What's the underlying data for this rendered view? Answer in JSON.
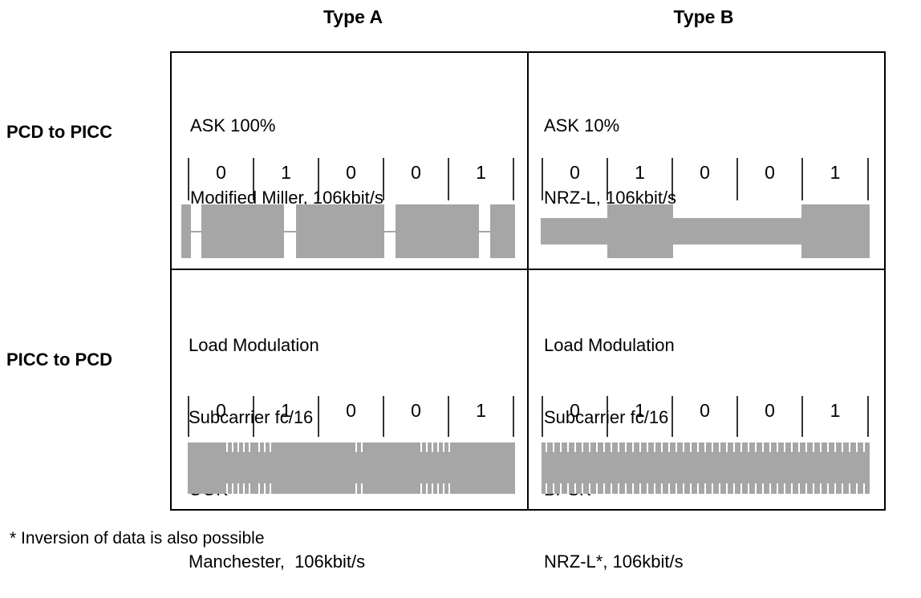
{
  "columns": [
    "Type A",
    "Type B"
  ],
  "rows": [
    "PCD to PICC",
    "PICC to PCD"
  ],
  "cells": {
    "a_down": [
      "ASK 100%",
      "Modified Miller, 106kbit/s"
    ],
    "b_down": [
      "ASK 10%",
      "NRZ-L, 106kbit/s"
    ],
    "a_up": [
      "Load Modulation",
      "Subcarrier fc/16",
      "OOK",
      "Manchester,  106kbit/s"
    ],
    "b_up": [
      "Load Modulation",
      "Subcarrier fc/16",
      "BPSK",
      "NRZ-L*, 106kbit/s"
    ]
  },
  "bits": [
    "0",
    "1",
    "0",
    "0",
    "1"
  ],
  "footnote": "* Inversion of data is also possible",
  "colors": {
    "signal": "#a6a6a6",
    "line": "#000000"
  }
}
